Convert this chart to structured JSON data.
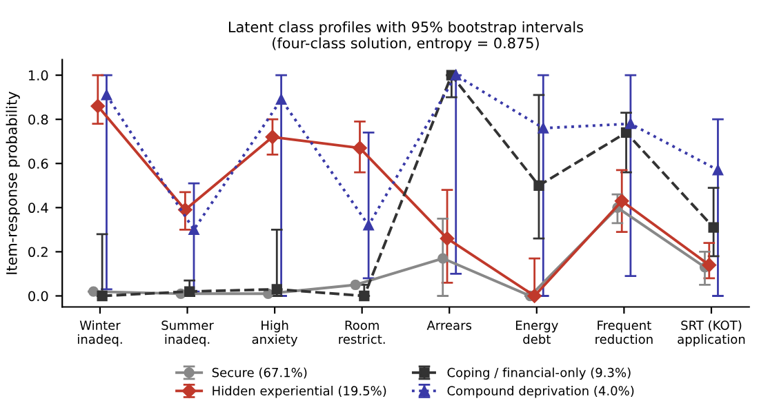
{
  "chart_data": {
    "type": "line",
    "title": "Latent class profiles with 95% bootstrap intervals\n(four-class solution, entropy = 0.875)",
    "ylabel": "Item-response probability",
    "categories": [
      "Winter\ninadeq.",
      "Summer\ninadeq.",
      "High\nanxiety",
      "Room\nrestrict.",
      "Arrears",
      "Energy\ndebt",
      "Frequent\nreduction",
      "SRT (KOT)\napplication"
    ],
    "ylim": [
      -0.05,
      1.07
    ],
    "yticks": [
      {
        "value": 0,
        "label": "0.0"
      },
      0.2,
      0.4,
      0.6,
      0.8,
      {
        "value": 1,
        "label": "1.0"
      }
    ],
    "grid": false,
    "legend": "bottom",
    "series": [
      {
        "name": "Secure (67.1%)",
        "color": "#888888",
        "marker": "circle",
        "line_style": "solid",
        "values": [
          0.02,
          0.01,
          0.01,
          0.05,
          0.17,
          0.0,
          0.4,
          0.13
        ],
        "errors": [
          null,
          null,
          null,
          null,
          [
            0.0,
            0.35
          ],
          null,
          [
            0.33,
            0.46
          ],
          [
            0.05,
            0.2
          ]
        ]
      },
      {
        "name": "Hidden experiential (19.5%)",
        "color": "#c0392b",
        "marker": "diamond",
        "line_style": "solid",
        "values": [
          0.86,
          0.39,
          0.72,
          0.67,
          0.26,
          0.0,
          0.43,
          0.14
        ],
        "errors": [
          [
            0.78,
            1.0
          ],
          [
            0.3,
            0.47
          ],
          [
            0.64,
            0.8
          ],
          [
            0.56,
            0.79
          ],
          [
            0.06,
            0.48
          ],
          [
            0.0,
            0.17
          ],
          [
            0.29,
            0.57
          ],
          [
            0.08,
            0.24
          ]
        ]
      },
      {
        "name": "Coping / financial-only (9.3%)",
        "color": "#333333",
        "marker": "square",
        "line_style": "dashed",
        "values": [
          0.0,
          0.02,
          0.03,
          0.0,
          1.0,
          0.5,
          0.74,
          0.31
        ],
        "errors": [
          [
            0.0,
            0.28
          ],
          [
            0.0,
            0.07
          ],
          [
            0.0,
            0.3
          ],
          [
            0.0,
            0.05
          ],
          [
            0.9,
            1.0
          ],
          [
            0.26,
            0.91
          ],
          [
            0.56,
            0.83
          ],
          [
            0.18,
            0.49
          ]
        ]
      },
      {
        "name": "Compound deprivation (4.0%)",
        "color": "#3a3aa8",
        "marker": "triangle",
        "line_style": "dotted",
        "values": [
          0.91,
          0.3,
          0.89,
          0.32,
          1.0,
          0.76,
          0.78,
          0.57
        ],
        "errors": [
          [
            0.03,
            1.0
          ],
          [
            0.02,
            0.51
          ],
          [
            0.0,
            1.0
          ],
          [
            0.08,
            0.74
          ],
          [
            0.1,
            1.0
          ],
          [
            0.0,
            1.0
          ],
          [
            0.09,
            1.0
          ],
          [
            0.0,
            0.8
          ]
        ]
      }
    ]
  }
}
